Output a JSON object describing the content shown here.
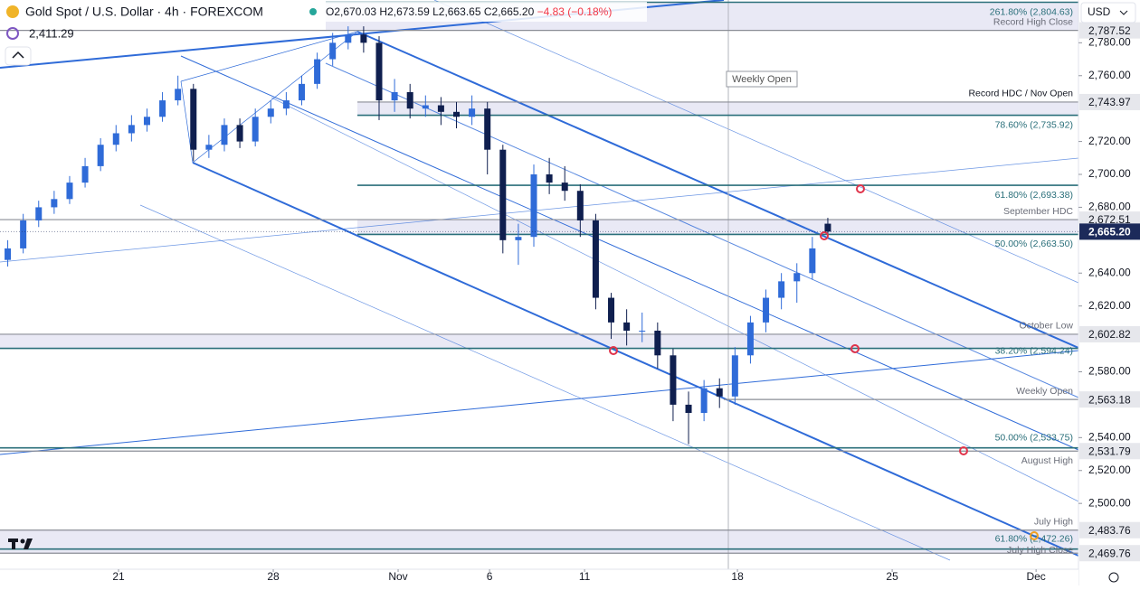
{
  "header": {
    "symbol": "Gold Spot / U.S. Dollar · 4h · FOREXCOM",
    "ohlc": [
      "O2,670.03",
      "H2,673.59",
      "L2,663.65",
      "C2,665.20"
    ],
    "change": "−4.83 (−0.18%)",
    "indicator": "2,411.29",
    "currency": "USD"
  },
  "chart_data": {
    "type": "candlestick",
    "x": [
      0.5,
      1.5,
      2.5,
      3.5,
      4.5,
      5.5,
      6.5,
      7.5,
      8.5,
      9.5,
      10.5,
      11.5,
      12.5,
      13.5,
      14.5,
      15.5,
      16.5,
      17.5,
      18.5,
      19.5,
      20.5,
      21.5,
      22.5,
      23.5,
      24.5,
      25.5,
      26.5,
      27.5,
      28.5,
      29.5,
      30.5,
      31.5,
      32.5,
      33.5,
      34.5,
      35.5,
      36.5,
      37.5,
      38.5,
      39.5,
      40.5,
      41.5,
      42.5,
      43.5,
      44.5,
      45.5,
      46.5,
      47.5,
      48.5,
      49.5,
      50.5,
      51.5,
      52.5,
      53.5
    ],
    "open": [
      2648,
      2655,
      2672,
      2680,
      2685,
      2695,
      2705,
      2718,
      2725,
      2730,
      2735,
      2745,
      2752,
      2715,
      2718,
      2730,
      2720,
      2735,
      2740,
      2745,
      2755,
      2770,
      2780,
      2785,
      2780,
      2745,
      2750,
      2740,
      2742,
      2738,
      2735,
      2740,
      2715,
      2660,
      2662,
      2700,
      2695,
      2690,
      2672,
      2625,
      2610,
      2605,
      2605,
      2590,
      2560,
      2555,
      2570,
      2565,
      2590,
      2610,
      2625,
      2635,
      2640,
      2670.03
    ],
    "high": [
      2660,
      2676,
      2684,
      2690,
      2699,
      2710,
      2722,
      2730,
      2736,
      2740,
      2750,
      2760,
      2755,
      2724,
      2734,
      2734,
      2740,
      2745,
      2750,
      2760,
      2774,
      2786,
      2790,
      2790,
      2784,
      2758,
      2755,
      2748,
      2747,
      2744,
      2748,
      2744,
      2718,
      2670,
      2706,
      2710,
      2705,
      2694,
      2676,
      2628,
      2618,
      2616,
      2610,
      2594,
      2568,
      2575,
      2576,
      2595,
      2614,
      2630,
      2640,
      2646,
      2662,
      2673.59
    ],
    "low": [
      2644,
      2652,
      2668,
      2676,
      2682,
      2692,
      2702,
      2714,
      2720,
      2726,
      2732,
      2742,
      2708,
      2710,
      2714,
      2716,
      2717,
      2731,
      2736,
      2742,
      2752,
      2766,
      2776,
      2774,
      2733,
      2738,
      2734,
      2735,
      2730,
      2728,
      2730,
      2700,
      2652,
      2645,
      2656,
      2688,
      2684,
      2662,
      2618,
      2600,
      2596,
      2598,
      2582,
      2550,
      2536,
      2550,
      2558,
      2560,
      2585,
      2604,
      2618,
      2622,
      2636,
      2663.65
    ],
    "close": [
      2655,
      2672,
      2680,
      2685,
      2695,
      2705,
      2718,
      2725,
      2730,
      2735,
      2745,
      2752,
      2715,
      2718,
      2730,
      2720,
      2735,
      2740,
      2745,
      2755,
      2770,
      2780,
      2785,
      2780,
      2745,
      2750,
      2740,
      2742,
      2738,
      2735,
      2740,
      2715,
      2660,
      2662,
      2700,
      2695,
      2690,
      2672,
      2625,
      2610,
      2605,
      2605,
      2590,
      2560,
      2555,
      2570,
      2565,
      2590,
      2610,
      2625,
      2635,
      2640,
      2655,
      2665.2
    ],
    "up_color": "#2f6bd8",
    "down_color": "#0f1f4f",
    "last_price_label": "2,665.20",
    "xlim": [
      0,
      69.7
    ],
    "xticks": [
      {
        "value": 7.66,
        "label": "21"
      },
      {
        "value": 17.66,
        "label": "28"
      },
      {
        "value": 25.73,
        "label": "Nov"
      },
      {
        "value": 31.64,
        "label": "6"
      },
      {
        "value": 37.78,
        "label": "11"
      },
      {
        "value": 47.66,
        "label": "18"
      },
      {
        "value": 57.66,
        "label": "25"
      },
      {
        "value": 66.96,
        "label": "Dec"
      }
    ],
    "ylim": [
      2460,
      2806
    ],
    "yticks": [
      {
        "value": 2500,
        "label": "2,500.00"
      },
      {
        "value": 2520,
        "label": "2,520.00"
      },
      {
        "value": 2540,
        "label": "2,540.00"
      },
      {
        "value": 2580,
        "label": "2,580.00"
      },
      {
        "value": 2620,
        "label": "2,620.00"
      },
      {
        "value": 2640,
        "label": "2,640.00"
      },
      {
        "value": 2680,
        "label": "2,680.00"
      },
      {
        "value": 2700,
        "label": "2,700.00"
      },
      {
        "value": 2720,
        "label": "2,720.00"
      },
      {
        "value": 2760,
        "label": "2,760.00"
      },
      {
        "value": 2780,
        "label": "2,780.00"
      }
    ],
    "levels": [
      {
        "value": 2804.63,
        "note": "261.80% (2,804.63)"
      },
      {
        "value": 2787.52,
        "label": "2,787.52",
        "note": "Record High Close"
      },
      {
        "value": 2743.97,
        "label": "2,743.97",
        "note": "Record HDC / Nov Open"
      },
      {
        "value": 2735.92,
        "note": "78.60% (2,735.92)"
      },
      {
        "value": 2693.38,
        "note": "61.80% (2,693.38)"
      },
      {
        "value": 2672.51,
        "label": "2,672.51",
        "note": "September HDC"
      },
      {
        "value": 2663.5,
        "note": "50.00% (2,663.50)"
      },
      {
        "value": 2602.82,
        "label": "2,602.82",
        "note": "October Low"
      },
      {
        "value": 2594.24,
        "note": "38.20% (2,594.24)"
      },
      {
        "value": 2563.18,
        "label": "2,563.18",
        "note": "Weekly Open"
      },
      {
        "value": 2533.75,
        "note": "50.00% (2,533.75)"
      },
      {
        "value": 2531.79,
        "label": "2,531.79",
        "note": "August High"
      },
      {
        "value": 2483.76,
        "label": "2,483.76",
        "note": "July High"
      },
      {
        "value": 2472.26,
        "note": "61.80% (2,472.26)"
      },
      {
        "value": 2469.76,
        "label": "2,469.76",
        "note": "July High Close"
      }
    ],
    "annotation": "Weekly Open"
  }
}
